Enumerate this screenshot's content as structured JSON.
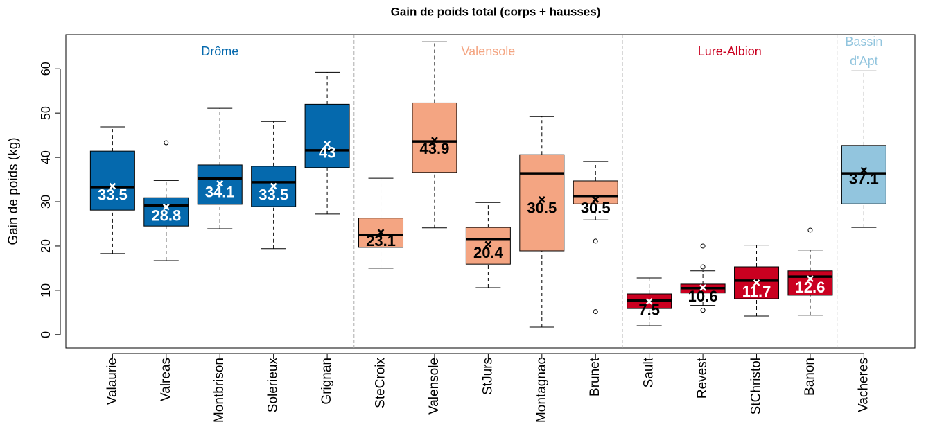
{
  "chart_data": {
    "type": "box",
    "title": "Gain de poids total (corps + hausses)",
    "ylabel": "Gain de poids (kg)",
    "categories": [
      "Valaurie",
      "Valreas",
      "Montbrison",
      "Solerieux",
      "Grignan",
      "SteCroix",
      "Valensole",
      "StJurs",
      "Montagnac",
      "Brunet",
      "Sault",
      "Revest",
      "StChristol",
      "Banon",
      "Vacheres"
    ],
    "whisker_low": [
      18.3,
      16.7,
      23.9,
      19.4,
      27.2,
      15.0,
      24.1,
      10.6,
      1.7,
      25.9,
      2.0,
      6.6,
      4.2,
      4.4,
      24.2
    ],
    "q1": [
      28.1,
      24.5,
      29.4,
      28.9,
      37.7,
      19.7,
      36.6,
      15.9,
      18.9,
      29.5,
      5.9,
      9.4,
      8.1,
      8.9,
      29.5
    ],
    "median": [
      33.3,
      29.1,
      35.2,
      34.4,
      41.6,
      22.5,
      43.6,
      21.6,
      36.4,
      31.3,
      7.7,
      10.5,
      12.2,
      13.1,
      36.4
    ],
    "q3": [
      41.4,
      30.9,
      38.3,
      38.0,
      52.0,
      26.3,
      52.3,
      24.2,
      40.6,
      34.7,
      9.2,
      11.4,
      15.3,
      14.4,
      42.7
    ],
    "whisker_high": [
      46.9,
      34.8,
      51.1,
      48.1,
      59.2,
      35.3,
      66.1,
      29.8,
      49.2,
      39.1,
      12.8,
      14.4,
      20.2,
      19.1,
      59.5
    ],
    "means": [
      33.5,
      28.8,
      34.1,
      33.5,
      43,
      23.1,
      43.9,
      20.4,
      30.5,
      30.5,
      7.5,
      10.6,
      11.7,
      12.6,
      37.1
    ],
    "outliers": [
      [],
      [
        43.3
      ],
      [],
      [],
      [],
      [],
      [],
      [],
      [],
      [
        21.1,
        5.2
      ],
      [],
      [
        20.0,
        15.3,
        5.5
      ],
      [],
      [
        23.6
      ],
      []
    ],
    "label_colors": [
      "#ffffff",
      "#ffffff",
      "#ffffff",
      "#ffffff",
      "#ffffff",
      "#000000",
      "#000000",
      "#000000",
      "#000000",
      "#000000",
      "#000000",
      "#000000",
      "#ffffff",
      "#ffffff",
      "#000000"
    ],
    "groups": [
      {
        "name": [
          "Drôme"
        ],
        "color": "#0569ad",
        "marker_color": "#ffffff",
        "count": 5
      },
      {
        "name": [
          "Valensole"
        ],
        "color": "#f4a582",
        "marker_color": "#000000",
        "count": 5
      },
      {
        "name": [
          "Lure-Albion"
        ],
        "color": "#ca0020",
        "marker_color": "#ffffff",
        "count": 4
      },
      {
        "name": [
          "Bassin",
          "d'Apt"
        ],
        "color": "#92c5de",
        "marker_color": "#000000",
        "count": 1
      }
    ],
    "ylim": [
      -3,
      67.7
    ],
    "yticks": [
      0,
      10,
      20,
      30,
      40,
      50,
      60
    ]
  }
}
